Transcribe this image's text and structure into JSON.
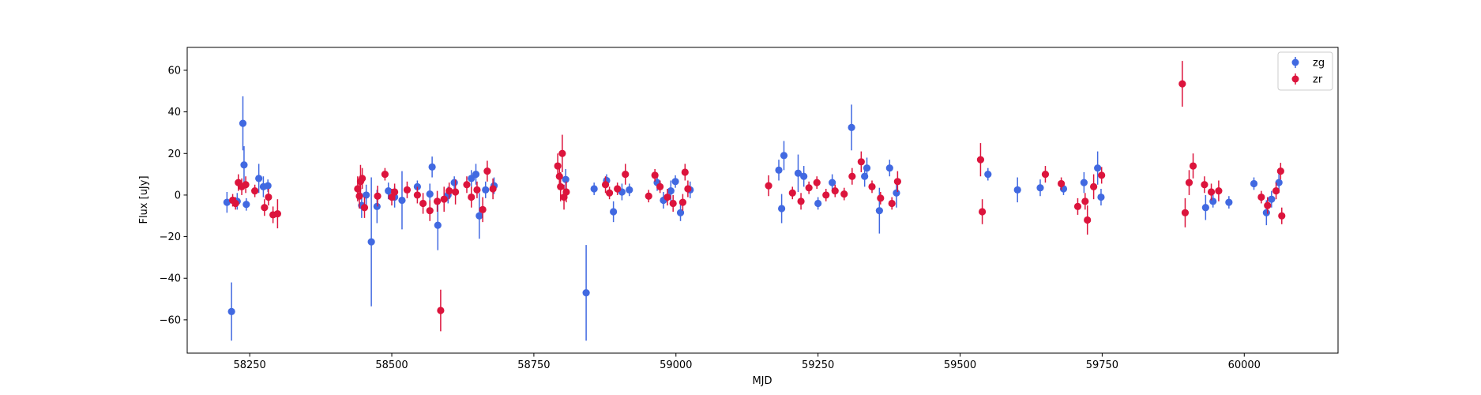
{
  "chart_data": {
    "type": "scatter",
    "title": "",
    "xlabel": "MJD",
    "ylabel": "Flux [uJy]",
    "xlim": [
      58140,
      60165
    ],
    "ylim": [
      -76,
      71
    ],
    "xticks": [
      58250,
      58500,
      58750,
      59000,
      59250,
      59500,
      59750,
      60000
    ],
    "yticks": [
      -60,
      -40,
      -20,
      0,
      20,
      40,
      60
    ],
    "grid": false,
    "legend": "top-right",
    "error_bars": true,
    "series": [
      {
        "name": "zg",
        "color": "#4169e1",
        "points": [
          [
            58210,
            -3.5,
            5
          ],
          [
            58218,
            -56,
            14
          ],
          [
            58228,
            -3,
            4
          ],
          [
            58238,
            34.5,
            13
          ],
          [
            58240,
            14.5,
            9
          ],
          [
            58244,
            -4.5,
            3
          ],
          [
            58266,
            8,
            7
          ],
          [
            58274,
            4,
            5
          ],
          [
            58282,
            4.5,
            3
          ],
          [
            58447,
            -5,
            6
          ],
          [
            58455,
            0,
            5
          ],
          [
            58464,
            -22.5,
            31
          ],
          [
            58474,
            -5.5,
            8
          ],
          [
            58494,
            2,
            4
          ],
          [
            58505,
            -1,
            5
          ],
          [
            58518,
            -2.5,
            14
          ],
          [
            58545,
            4,
            3
          ],
          [
            58567,
            0.5,
            5
          ],
          [
            58571,
            13.5,
            5
          ],
          [
            58581,
            -14.5,
            12
          ],
          [
            58599,
            0,
            4
          ],
          [
            58610,
            6,
            3
          ],
          [
            58640,
            8,
            4
          ],
          [
            58648,
            10,
            5
          ],
          [
            58654,
            -10,
            11
          ],
          [
            58665,
            2.5,
            4
          ],
          [
            58680,
            4.5,
            4
          ],
          [
            58806,
            7.5,
            5
          ],
          [
            58842,
            -47,
            23
          ],
          [
            58856,
            3,
            3
          ],
          [
            58878,
            7,
            3
          ],
          [
            58890,
            -8,
            5
          ],
          [
            58905,
            1.5,
            4
          ],
          [
            58918,
            2.5,
            3
          ],
          [
            58967,
            6,
            4
          ],
          [
            58978,
            -2.5,
            4
          ],
          [
            58991,
            2,
            5
          ],
          [
            58999,
            6.5,
            3
          ],
          [
            59008,
            -8.5,
            4
          ],
          [
            59025,
            2.5,
            4
          ],
          [
            59181,
            12,
            5
          ],
          [
            59186,
            -6.5,
            7
          ],
          [
            59190,
            19,
            7
          ],
          [
            59215,
            10.5,
            9
          ],
          [
            59225,
            9,
            5
          ],
          [
            59250,
            -4,
            3
          ],
          [
            59275,
            6,
            4
          ],
          [
            59309,
            32.5,
            11
          ],
          [
            59332,
            9,
            5
          ],
          [
            59336,
            13,
            5
          ],
          [
            59358,
            -7.5,
            11
          ],
          [
            59376,
            13,
            4
          ],
          [
            59388,
            1,
            7
          ],
          [
            59549,
            10,
            3
          ],
          [
            59601,
            2.5,
            6
          ],
          [
            59641,
            3.5,
            4
          ],
          [
            59682,
            3,
            3
          ],
          [
            59718,
            6,
            5
          ],
          [
            59742,
            13,
            8
          ],
          [
            59748,
            -1,
            4
          ],
          [
            59932,
            -6,
            6
          ],
          [
            59945,
            -3,
            3
          ],
          [
            59973,
            -3.5,
            3
          ],
          [
            60017,
            5.5,
            3
          ],
          [
            60039,
            -8.5,
            6
          ],
          [
            60048,
            -2,
            4
          ],
          [
            60061,
            6,
            5
          ]
        ]
      },
      {
        "name": "zr",
        "color": "#dc143c",
        "points": [
          [
            58220,
            -2.5,
            3
          ],
          [
            58225,
            -4,
            3
          ],
          [
            58230,
            6,
            4
          ],
          [
            58236,
            4,
            4
          ],
          [
            58243,
            5,
            4
          ],
          [
            58259,
            2,
            3
          ],
          [
            58276,
            -6,
            4
          ],
          [
            58283,
            -1,
            4
          ],
          [
            58291,
            -9.5,
            4
          ],
          [
            58299,
            -9,
            7
          ],
          [
            58440,
            3,
            6
          ],
          [
            58443,
            -0.5,
            6
          ],
          [
            58445,
            6.5,
            8
          ],
          [
            58448,
            8,
            5
          ],
          [
            58452,
            -6,
            5
          ],
          [
            58475,
            -0.5,
            5
          ],
          [
            58488,
            10,
            3
          ],
          [
            58500,
            -1,
            4
          ],
          [
            58505,
            1.5,
            4
          ],
          [
            58527,
            2.5,
            4
          ],
          [
            58545,
            0,
            4
          ],
          [
            58555,
            -4,
            5
          ],
          [
            58567,
            -7.5,
            5
          ],
          [
            58580,
            -3,
            5
          ],
          [
            58586,
            -55.5,
            10
          ],
          [
            58592,
            -2,
            6
          ],
          [
            58601,
            2,
            4
          ],
          [
            58612,
            1.5,
            6
          ],
          [
            58632,
            5,
            4
          ],
          [
            58640,
            -1,
            5
          ],
          [
            58650,
            2.5,
            4
          ],
          [
            58660,
            -7,
            6
          ],
          [
            58668,
            11.5,
            5
          ],
          [
            58678,
            3,
            5
          ],
          [
            58792,
            14,
            6
          ],
          [
            58795,
            9,
            5
          ],
          [
            58797,
            4,
            7
          ],
          [
            58800,
            20,
            9
          ],
          [
            58803,
            -1,
            6
          ],
          [
            58807,
            1.5,
            5
          ],
          [
            58876,
            5,
            4
          ],
          [
            58883,
            1,
            3
          ],
          [
            58897,
            3,
            3
          ],
          [
            58911,
            10,
            5
          ],
          [
            58952,
            -0.5,
            3
          ],
          [
            58963,
            9.5,
            3
          ],
          [
            58972,
            4,
            3
          ],
          [
            58985,
            -1,
            4
          ],
          [
            58995,
            -4,
            4
          ],
          [
            59012,
            -3.5,
            4
          ],
          [
            59016,
            11,
            4
          ],
          [
            59021,
            3,
            4
          ],
          [
            59163,
            4.5,
            5
          ],
          [
            59205,
            1,
            3
          ],
          [
            59220,
            -3,
            4
          ],
          [
            59234,
            3.5,
            3
          ],
          [
            59248,
            6,
            3
          ],
          [
            59264,
            0,
            3
          ],
          [
            59280,
            2,
            3
          ],
          [
            59296,
            0.5,
            3
          ],
          [
            59310,
            9,
            4
          ],
          [
            59326,
            16,
            5
          ],
          [
            59345,
            4,
            3
          ],
          [
            59360,
            -1.5,
            3
          ],
          [
            59380,
            -4,
            3
          ],
          [
            59390,
            6.5,
            5
          ],
          [
            59536,
            17,
            8
          ],
          [
            59539,
            -8,
            6
          ],
          [
            59650,
            10,
            4
          ],
          [
            59678,
            5.5,
            3
          ],
          [
            59707,
            -5.5,
            4
          ],
          [
            59720,
            -3,
            4
          ],
          [
            59724,
            -12,
            7
          ],
          [
            59735,
            4,
            6
          ],
          [
            59749,
            9.5,
            4
          ],
          [
            59891,
            53.5,
            11
          ],
          [
            59896,
            -8.5,
            7
          ],
          [
            59903,
            6,
            6
          ],
          [
            59910,
            14,
            6
          ],
          [
            59930,
            5,
            4
          ],
          [
            59942,
            1.5,
            4
          ],
          [
            59955,
            2,
            5
          ],
          [
            60030,
            -1,
            3
          ],
          [
            60041,
            -5,
            4
          ],
          [
            60056,
            2,
            4
          ],
          [
            60064,
            11.5,
            4
          ],
          [
            60066,
            -10,
            4
          ]
        ]
      }
    ]
  }
}
